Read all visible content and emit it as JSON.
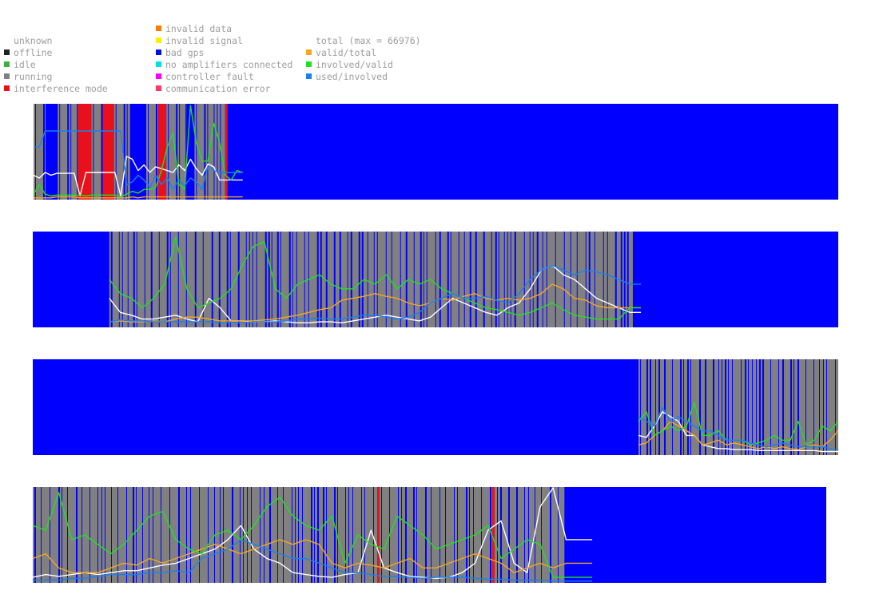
{
  "legend": {
    "status": [
      {
        "label": "unknown",
        "color": null
      },
      {
        "label": "offline",
        "color": "#222222"
      },
      {
        "label": "idle",
        "color": "#3cb043"
      },
      {
        "label": "running",
        "color": "#808080"
      },
      {
        "label": "interference mode",
        "color": "#e8101a"
      }
    ],
    "errors": [
      {
        "label": "invalid data",
        "color": "#ff7a00"
      },
      {
        "label": "invalid signal",
        "color": "#ffee00"
      },
      {
        "label": "bad gps",
        "color": "#0010e0"
      },
      {
        "label": "no amplifiers connected",
        "color": "#00e0e0"
      },
      {
        "label": "controller fault",
        "color": "#ff00ff"
      },
      {
        "label": "communication error",
        "color": "#ff3a6a"
      }
    ],
    "ratios": [
      {
        "label": "total (max = 66976)",
        "color": null
      },
      {
        "label": "valid/total",
        "color": "#f5a623"
      },
      {
        "label": "involved/valid",
        "color": "#22e022"
      },
      {
        "label": "used/involved",
        "color": "#1a7ff0"
      }
    ]
  },
  "colors": {
    "background": "#0000ff",
    "running": "#808080",
    "idle": "#3cb043",
    "interference": "#e8101a",
    "total": "#ffffff",
    "valid_total": "#f5a623",
    "involved_valid": "#22e022",
    "used_involved": "#1a7ff0",
    "no_amplifiers": "#00e0e0"
  },
  "chart_data": [
    {
      "type": "line",
      "title": "",
      "xlabel": "",
      "ylabel": "",
      "ylim": [
        0,
        1
      ],
      "grid": false,
      "legend": "top-left",
      "data_fraction": 0.26,
      "status_bands": [
        {
          "from": 0.0,
          "to": 0.015,
          "status": "running"
        },
        {
          "from": 0.015,
          "to": 0.03,
          "status": "bad gps"
        },
        {
          "from": 0.03,
          "to": 0.055,
          "status": "running"
        },
        {
          "from": 0.055,
          "to": 0.072,
          "status": "interference mode"
        },
        {
          "from": 0.072,
          "to": 0.085,
          "status": "running"
        },
        {
          "from": 0.085,
          "to": 0.1,
          "status": "interference mode"
        },
        {
          "from": 0.1,
          "to": 0.12,
          "status": "running"
        },
        {
          "from": 0.12,
          "to": 0.14,
          "status": "bad gps"
        },
        {
          "from": 0.14,
          "to": 0.155,
          "status": "running"
        },
        {
          "from": 0.155,
          "to": 0.165,
          "status": "interference mode"
        },
        {
          "from": 0.165,
          "to": 0.19,
          "status": "running"
        },
        {
          "from": 0.19,
          "to": 0.2,
          "status": "bad gps"
        },
        {
          "from": 0.2,
          "to": 0.238,
          "status": "running"
        },
        {
          "from": 0.238,
          "to": 0.241,
          "status": "interference mode"
        }
      ],
      "series": [
        {
          "values": [
            0.25,
            0.22,
            0.28,
            0.25,
            0.27,
            0.27,
            0.27,
            0.27,
            0.03,
            0.28,
            0.28,
            0.28,
            0.28,
            0.28,
            0.28,
            0.03,
            0.45,
            0.42,
            0.3,
            0.36,
            0.28,
            0.34,
            0.32,
            0.3,
            0.28,
            0.36,
            0.3,
            0.42,
            0.32,
            0.25,
            0.37,
            0.34,
            0.2,
            0.2,
            0.2,
            0.2,
            0.2
          ]
        },
        {
          "values": [
            0.01,
            0.01,
            0.01,
            0.01,
            0.02,
            0.02,
            0.02,
            0.02,
            0.01,
            0.01,
            0.01,
            0.01,
            0.01,
            0.01,
            0.01,
            0.01,
            0.01,
            0.02,
            0.01,
            0.02,
            0.02,
            0.02,
            0.02,
            0.02,
            0.02,
            0.02,
            0.02,
            0.02,
            0.02,
            0.02,
            0.02,
            0.02,
            0.02,
            0.02,
            0.02,
            0.02,
            0.02
          ]
        },
        {
          "values": [
            0.05,
            0.15,
            0.05,
            0.03,
            0.04,
            0.04,
            0.04,
            0.04,
            0.04,
            0.03,
            0.04,
            0.04,
            0.04,
            0.04,
            0.04,
            0.02,
            0.05,
            0.08,
            0.06,
            0.1,
            0.1,
            0.12,
            0.3,
            0.55,
            0.7,
            0.15,
            0.1,
            0.99,
            0.6,
            0.4,
            0.4,
            0.8,
            0.6,
            0.25,
            0.2,
            0.3,
            0.28
          ]
        },
        {
          "values": [
            0.55,
            0.55,
            0.72,
            0.72,
            0.72,
            0.72,
            0.72,
            0.72,
            0.72,
            0.72,
            0.72,
            0.72,
            0.72,
            0.72,
            0.72,
            0.72,
            0.15,
            0.18,
            0.25,
            0.2,
            0.12,
            0.25,
            0.15,
            0.22,
            0.1,
            0.2,
            0.14,
            0.22,
            0.18,
            0.1,
            0.35,
            0.3,
            0.28,
            0.28,
            0.28,
            0.28,
            0.28
          ]
        }
      ]
    },
    {
      "type": "line",
      "title": "",
      "xlabel": "",
      "ylabel": "",
      "ylim": [
        0,
        1
      ],
      "grid": false,
      "data_fraction": 0.755,
      "status_bands": [
        {
          "from": 0.095,
          "to": 0.745,
          "status": "running"
        }
      ],
      "series": [
        {
          "values": [
            0.3,
            0.15,
            0.12,
            0.08,
            0.08,
            0.1,
            0.12,
            0.08,
            0.05,
            0.3,
            0.2,
            0.06,
            0.06,
            0.05,
            0.05,
            0.06,
            0.05,
            0.04,
            0.04,
            0.05,
            0.05,
            0.04,
            0.06,
            0.08,
            0.1,
            0.12,
            0.1,
            0.08,
            0.06,
            0.1,
            0.2,
            0.3,
            0.25,
            0.2,
            0.15,
            0.12,
            0.2,
            0.25,
            0.4,
            0.6,
            0.65,
            0.55,
            0.5,
            0.4,
            0.3,
            0.25,
            0.2,
            0.15,
            0.15
          ]
        },
        {
          "values": [
            0.05,
            0.06,
            0.05,
            0.05,
            0.06,
            0.05,
            0.08,
            0.1,
            0.1,
            0.08,
            0.06,
            0.06,
            0.06,
            0.06,
            0.07,
            0.08,
            0.1,
            0.12,
            0.15,
            0.18,
            0.2,
            0.28,
            0.3,
            0.32,
            0.35,
            0.32,
            0.3,
            0.25,
            0.22,
            0.25,
            0.3,
            0.28,
            0.32,
            0.35,
            0.3,
            0.28,
            0.3,
            0.28,
            0.3,
            0.35,
            0.45,
            0.4,
            0.3,
            0.28,
            0.22,
            0.2,
            0.2,
            0.2,
            0.2
          ]
        },
        {
          "values": [
            0.5,
            0.35,
            0.3,
            0.2,
            0.3,
            0.45,
            0.95,
            0.4,
            0.2,
            0.25,
            0.3,
            0.4,
            0.65,
            0.85,
            0.9,
            0.4,
            0.3,
            0.45,
            0.5,
            0.55,
            0.45,
            0.4,
            0.4,
            0.5,
            0.45,
            0.55,
            0.4,
            0.5,
            0.45,
            0.5,
            0.4,
            0.35,
            0.3,
            0.25,
            0.2,
            0.18,
            0.15,
            0.12,
            0.15,
            0.2,
            0.25,
            0.18,
            0.12,
            0.1,
            0.08,
            0.08,
            0.08,
            0.2,
            0.2
          ]
        },
        {
          "values": [
            0.05,
            0.07,
            0.06,
            0.06,
            0.05,
            0.05,
            0.05,
            0.05,
            0.05,
            0.05,
            0.04,
            0.04,
            0.04,
            0.05,
            0.05,
            0.05,
            0.06,
            0.08,
            0.08,
            0.09,
            0.08,
            0.08,
            0.1,
            0.12,
            0.12,
            0.1,
            0.08,
            0.1,
            0.15,
            0.25,
            0.3,
            0.35,
            0.3,
            0.3,
            0.32,
            0.28,
            0.25,
            0.35,
            0.5,
            0.6,
            0.65,
            0.6,
            0.55,
            0.6,
            0.58,
            0.55,
            0.5,
            0.45,
            0.45
          ]
        }
      ]
    },
    {
      "type": "line",
      "title": "",
      "xlabel": "",
      "ylabel": "",
      "ylim": [
        0,
        1
      ],
      "grid": false,
      "data_fraction": 1.0,
      "status_bands": [
        {
          "from": 0.752,
          "to": 1.0,
          "status": "running"
        }
      ],
      "series": [
        {
          "values": [
            0.2,
            0.18,
            0.3,
            0.45,
            0.4,
            0.35,
            0.2,
            0.2,
            0.1,
            0.08,
            0.06,
            0.06,
            0.05,
            0.05,
            0.05,
            0.04,
            0.04,
            0.04,
            0.04,
            0.04,
            0.04,
            0.04,
            0.04,
            0.03,
            0.03,
            0.03
          ]
        },
        {
          "values": [
            0.1,
            0.12,
            0.2,
            0.25,
            0.35,
            0.3,
            0.25,
            0.2,
            0.1,
            0.12,
            0.15,
            0.1,
            0.12,
            0.1,
            0.08,
            0.06,
            0.08,
            0.06,
            0.08,
            0.06,
            0.05,
            0.08,
            0.1,
            0.08,
            0.15,
            0.25
          ]
        },
        {
          "values": [
            0.35,
            0.45,
            0.2,
            0.25,
            0.3,
            0.25,
            0.3,
            0.55,
            0.2,
            0.2,
            0.25,
            0.15,
            0.15,
            0.15,
            0.1,
            0.12,
            0.15,
            0.2,
            0.15,
            0.15,
            0.35,
            0.1,
            0.15,
            0.3,
            0.25,
            0.35
          ]
        },
        {
          "values": [
            0.4,
            0.35,
            0.3,
            0.5,
            0.35,
            0.4,
            0.35,
            0.3,
            0.25,
            0.25,
            0.2,
            0.15,
            0.15,
            0.15,
            0.12,
            0.1,
            0.08,
            0.1,
            0.12,
            0.1,
            0.08,
            0.08,
            0.08,
            0.08,
            0.06,
            0.05
          ]
        }
      ]
    },
    {
      "type": "line",
      "title": "",
      "xlabel": "",
      "ylabel": "",
      "ylim": [
        0,
        1
      ],
      "grid": false,
      "data_fraction": 0.705,
      "status_bands": [
        {
          "from": 0.0,
          "to": 0.67,
          "status": "running"
        },
        {
          "from": 0.434,
          "to": 0.437,
          "status": "interference mode"
        },
        {
          "from": 0.579,
          "to": 0.582,
          "status": "interference mode"
        }
      ],
      "series": [
        {
          "values": [
            0.05,
            0.08,
            0.06,
            0.08,
            0.1,
            0.08,
            0.1,
            0.12,
            0.12,
            0.15,
            0.18,
            0.2,
            0.25,
            0.3,
            0.35,
            0.45,
            0.6,
            0.35,
            0.25,
            0.2,
            0.1,
            0.08,
            0.06,
            0.05,
            0.08,
            0.1,
            0.55,
            0.15,
            0.1,
            0.06,
            0.05,
            0.04,
            0.05,
            0.1,
            0.2,
            0.55,
            0.65,
            0.2,
            0.1,
            0.8,
            1.0,
            0.45,
            0.45,
            0.45
          ]
        },
        {
          "values": [
            0.25,
            0.3,
            0.15,
            0.1,
            0.1,
            0.1,
            0.15,
            0.2,
            0.18,
            0.25,
            0.2,
            0.25,
            0.3,
            0.35,
            0.4,
            0.35,
            0.3,
            0.35,
            0.4,
            0.45,
            0.4,
            0.45,
            0.4,
            0.2,
            0.15,
            0.2,
            0.18,
            0.15,
            0.2,
            0.25,
            0.15,
            0.15,
            0.2,
            0.25,
            0.3,
            0.25,
            0.2,
            0.1,
            0.15,
            0.2,
            0.15,
            0.2,
            0.2,
            0.2
          ]
        },
        {
          "values": [
            0.6,
            0.55,
            0.95,
            0.45,
            0.5,
            0.4,
            0.3,
            0.4,
            0.55,
            0.7,
            0.75,
            0.45,
            0.35,
            0.3,
            0.5,
            0.55,
            0.45,
            0.6,
            0.8,
            0.9,
            0.7,
            0.6,
            0.55,
            0.7,
            0.2,
            0.5,
            0.4,
            0.35,
            0.7,
            0.6,
            0.5,
            0.35,
            0.4,
            0.45,
            0.5,
            0.6,
            0.25,
            0.35,
            0.45,
            0.4,
            0.05,
            0.05,
            0.05,
            0.05
          ]
        },
        {
          "values": [
            0.02,
            0.02,
            0.02,
            0.04,
            0.04,
            0.06,
            0.08,
            0.08,
            0.08,
            0.1,
            0.1,
            0.12,
            0.1,
            0.25,
            0.3,
            0.35,
            0.45,
            0.4,
            0.35,
            0.3,
            0.25,
            0.25,
            0.2,
            0.15,
            0.1,
            0.1,
            0.08,
            0.06,
            0.06,
            0.05,
            0.04,
            0.05,
            0.05,
            0.05,
            0.04,
            0.03,
            0.03,
            0.02,
            0.02,
            0.02,
            0.01,
            0.01,
            0.01,
            0.01
          ]
        }
      ]
    }
  ]
}
